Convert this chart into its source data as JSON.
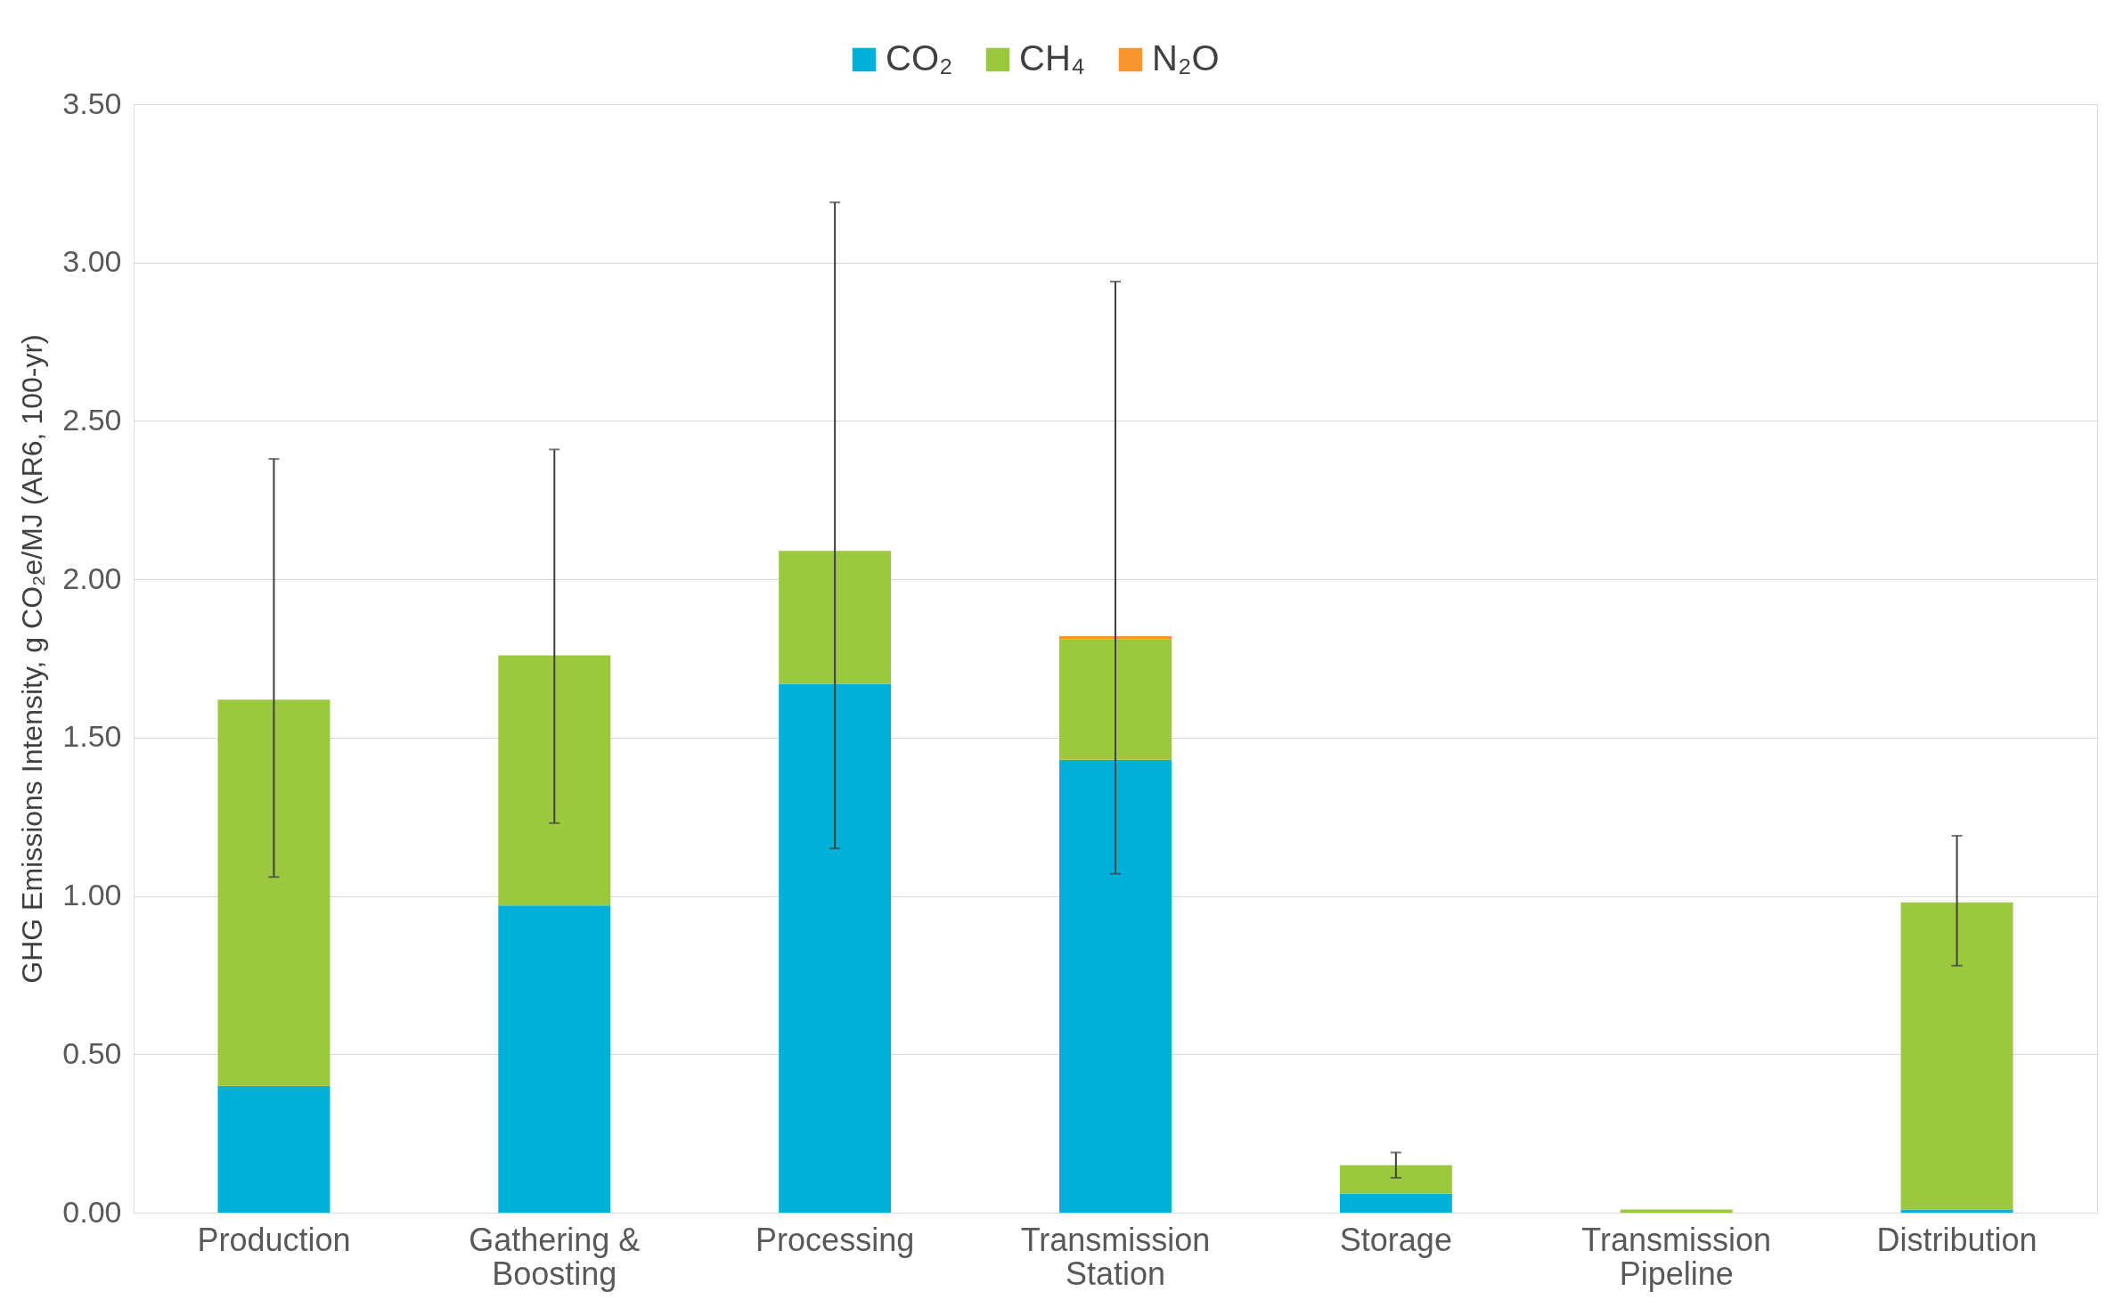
{
  "chart_data": {
    "type": "bar",
    "stacked": true,
    "ylabel": "GHG Emissions Intensity, g CO₂e/MJ (AR6, 100-yr)",
    "categories": [
      "Production",
      "Gathering & Boosting",
      "Processing",
      "Transmission Station",
      "Storage",
      "Transmission Pipeline",
      "Distribution"
    ],
    "series": [
      {
        "name": "CO₂",
        "color": "#00b0d8",
        "values": [
          0.4,
          0.97,
          1.67,
          1.43,
          0.06,
          0.0,
          0.01
        ]
      },
      {
        "name": "CH₄",
        "color": "#9bc83f",
        "values": [
          1.22,
          0.79,
          0.42,
          0.38,
          0.09,
          0.01,
          0.97
        ],
        "errors": [
          [
            1.06,
            2.38
          ],
          [
            1.23,
            2.41
          ],
          [
            1.15,
            3.19
          ],
          [
            1.07,
            2.94
          ],
          [
            0.11,
            0.19
          ],
          null,
          [
            0.78,
            1.19
          ]
        ]
      },
      {
        "name": "N₂O",
        "color": "#f7962f",
        "values": [
          0.0,
          0.0,
          0.0,
          0.01,
          0.0,
          0.0,
          0.0
        ]
      }
    ],
    "ylim": [
      0,
      3.5
    ],
    "yticks": [
      {
        "value": 0,
        "label": "0.00"
      },
      {
        "value": 0.5,
        "label": "0.50"
      },
      {
        "value": 1,
        "label": "1.00"
      },
      {
        "value": 1.5,
        "label": "1.50"
      },
      {
        "value": 2,
        "label": "2.00"
      },
      {
        "value": 2.5,
        "label": "2.50"
      },
      {
        "value": 3,
        "label": "3.00"
      },
      {
        "value": 3.5,
        "label": "3.50"
      }
    ],
    "grid": "y",
    "legend": "top"
  }
}
